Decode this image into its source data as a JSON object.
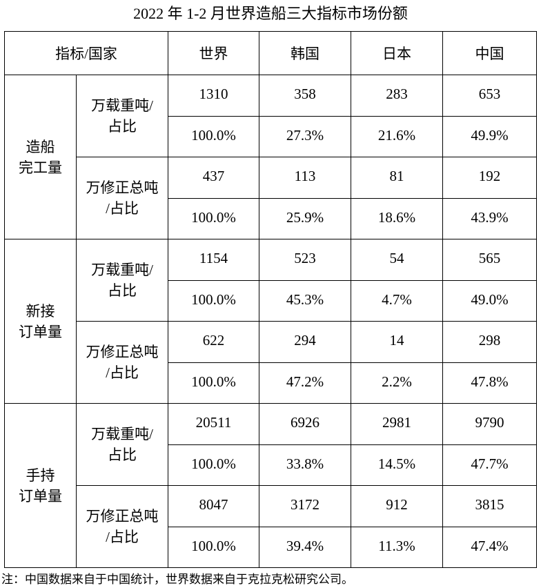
{
  "title": "2022 年 1-2 月世界造船三大指标市场份额",
  "table": {
    "header": [
      "指标/国家",
      "世界",
      "韩国",
      "日本",
      "中国"
    ],
    "groups": [
      {
        "label_lines": [
          "造船",
          "完工量"
        ],
        "subgroups": [
          {
            "unit_lines": [
              "万载重吨/",
              "占比"
            ],
            "rows": [
              [
                "1310",
                "358",
                "283",
                "653"
              ],
              [
                "100.0%",
                "27.3%",
                "21.6%",
                "49.9%"
              ]
            ]
          },
          {
            "unit_lines": [
              "万修正总吨",
              "/占比"
            ],
            "rows": [
              [
                "437",
                "113",
                "81",
                "192"
              ],
              [
                "100.0%",
                "25.9%",
                "18.6%",
                "43.9%"
              ]
            ]
          }
        ]
      },
      {
        "label_lines": [
          "新接",
          "订单量"
        ],
        "subgroups": [
          {
            "unit_lines": [
              "万载重吨/",
              "占比"
            ],
            "rows": [
              [
                "1154",
                "523",
                "54",
                "565"
              ],
              [
                "100.0%",
                "45.3%",
                "4.7%",
                "49.0%"
              ]
            ]
          },
          {
            "unit_lines": [
              "万修正总吨",
              "/占比"
            ],
            "rows": [
              [
                "622",
                "294",
                "14",
                "298"
              ],
              [
                "100.0%",
                "47.2%",
                "2.2%",
                "47.8%"
              ]
            ]
          }
        ]
      },
      {
        "label_lines": [
          "手持",
          "订单量"
        ],
        "subgroups": [
          {
            "unit_lines": [
              "万载重吨/",
              "占比"
            ],
            "rows": [
              [
                "20511",
                "6926",
                "2981",
                "9790"
              ],
              [
                "100.0%",
                "33.8%",
                "14.5%",
                "47.7%"
              ]
            ]
          },
          {
            "unit_lines": [
              "万修正总吨",
              "/占比"
            ],
            "rows": [
              [
                "8047",
                "3172",
                "912",
                "3815"
              ],
              [
                "100.0%",
                "39.4%",
                "11.3%",
                "47.4%"
              ]
            ]
          }
        ]
      }
    ]
  },
  "note": "注：中国数据来自于中国统计，世界数据来自于克拉克松研究公司。"
}
